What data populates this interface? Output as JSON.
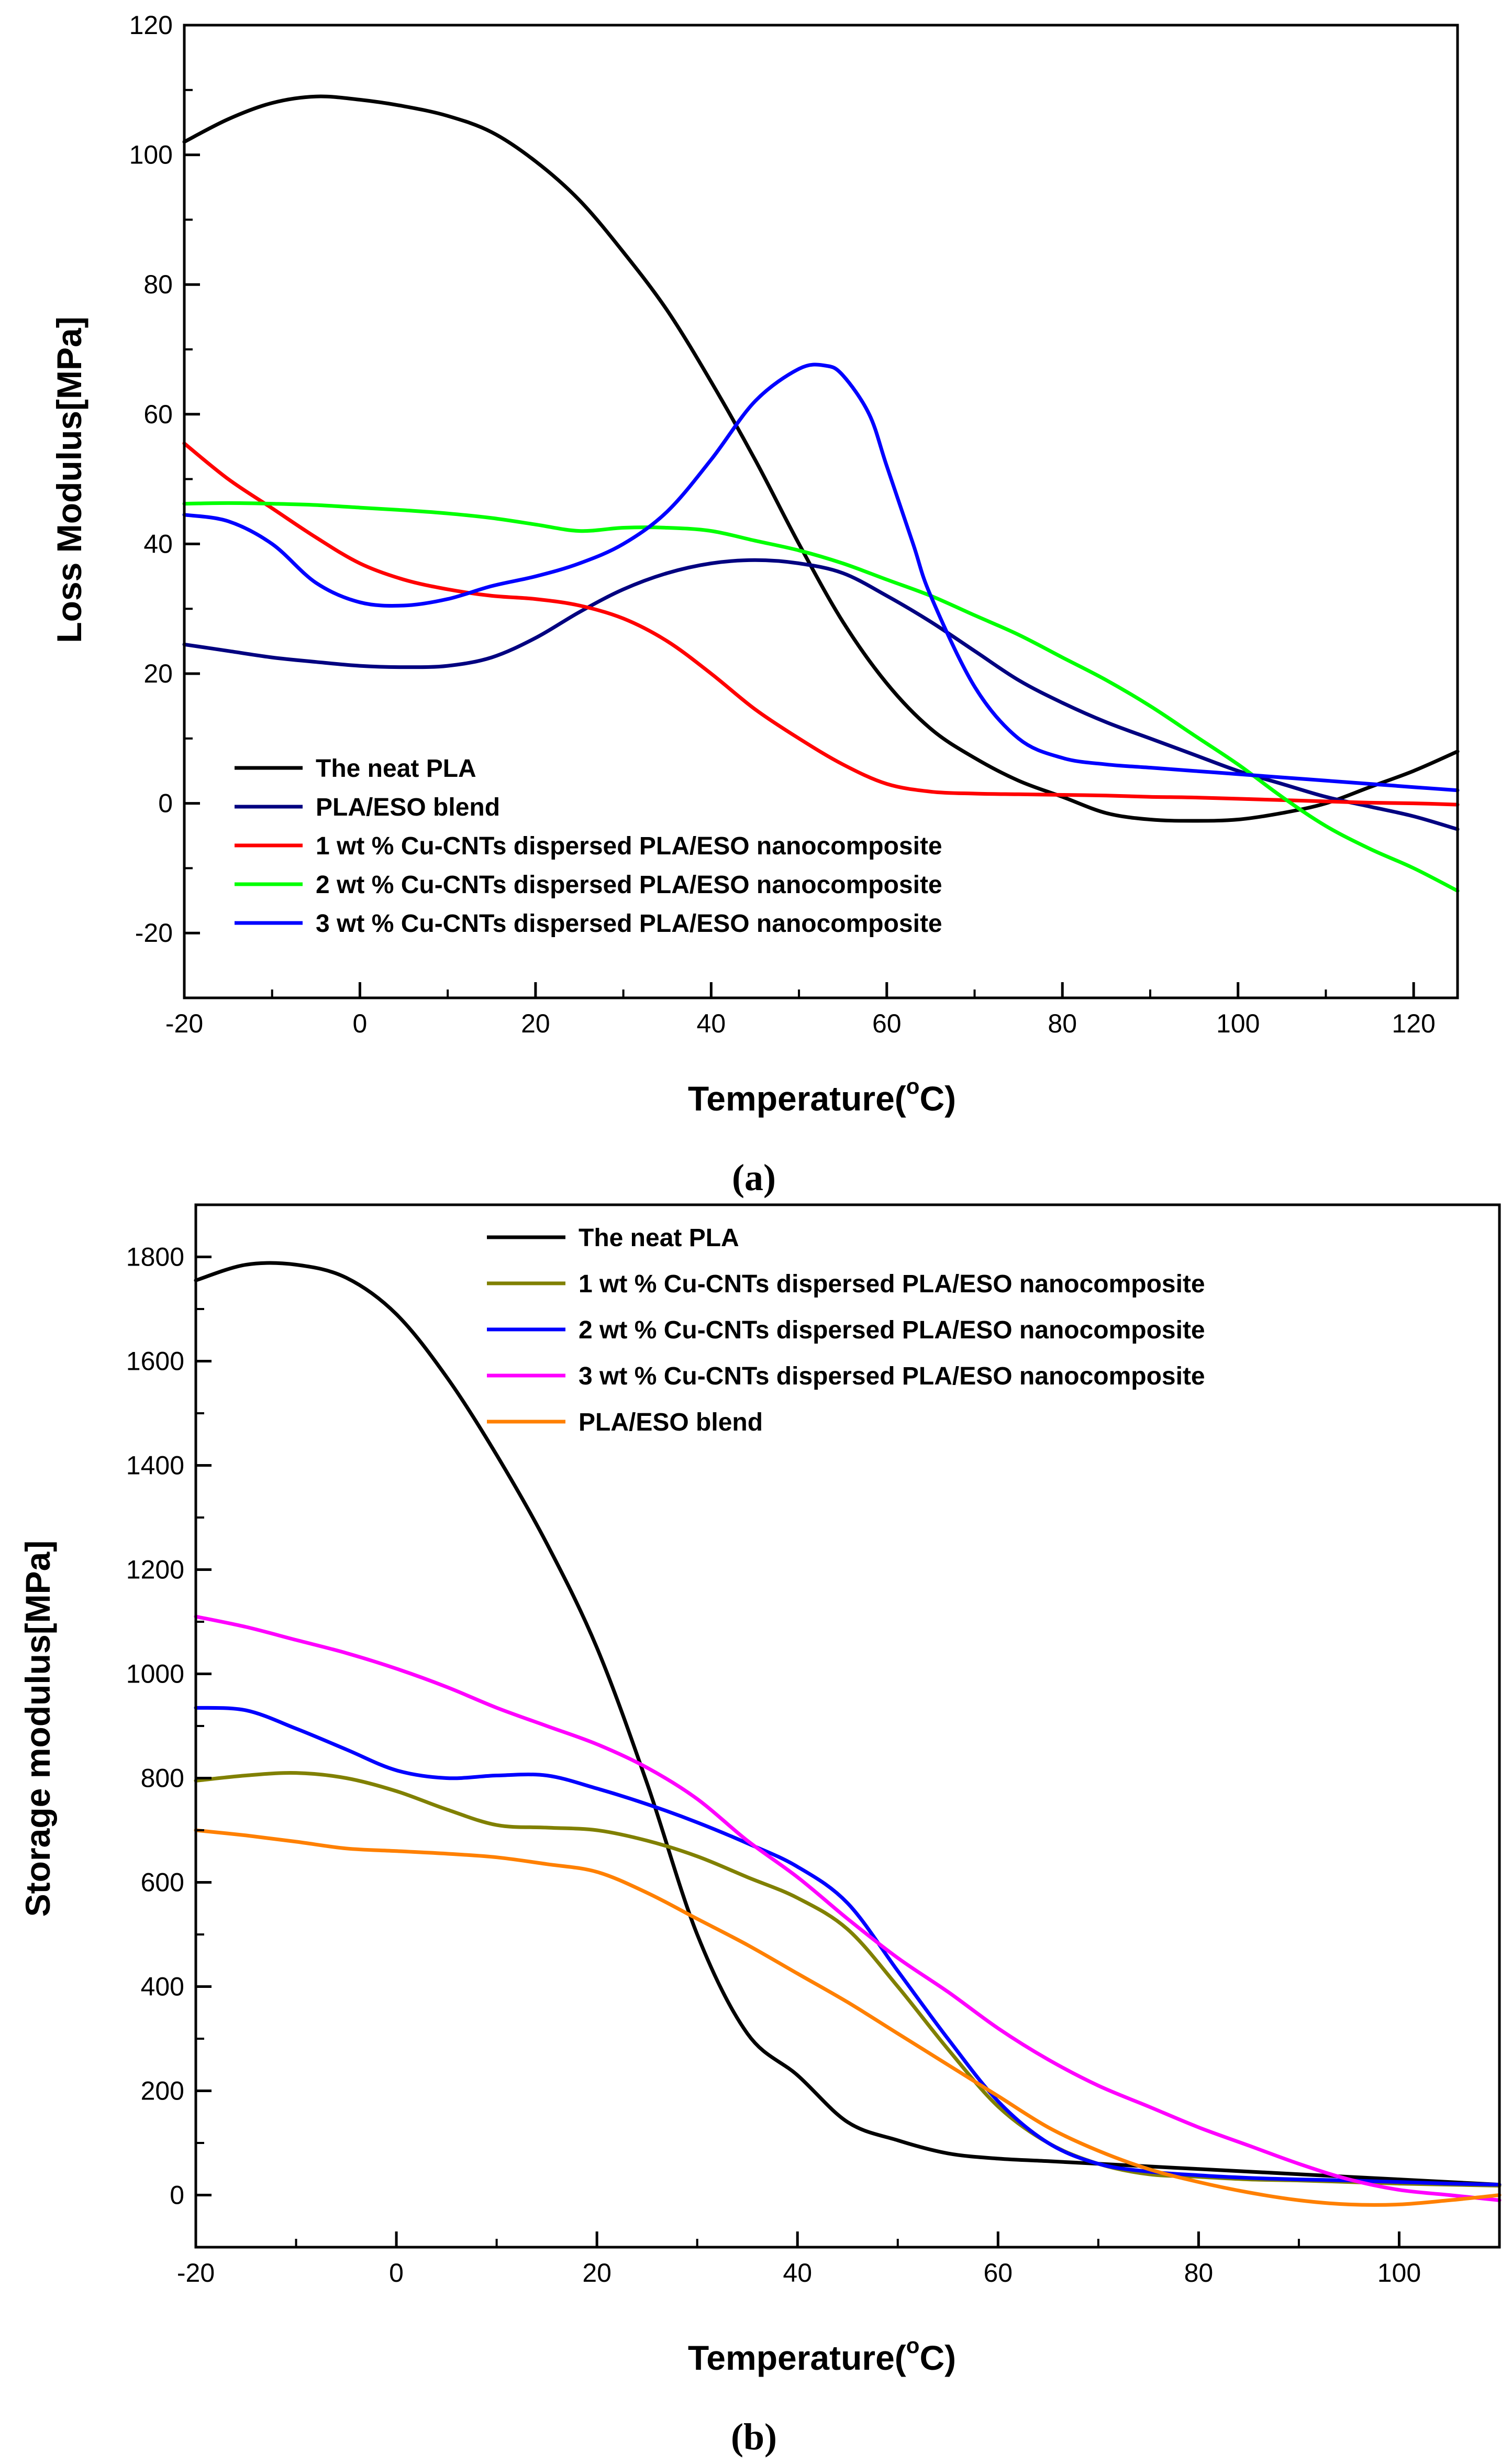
{
  "chart_data": [
    {
      "type": "line",
      "panel_label": "(a)",
      "xlabel": "Temperature(",
      "xlabel_sup": "o",
      "xlabel_suffix": "C)",
      "ylabel": "Loss Modulus[MPa]",
      "xlim": [
        -20,
        125
      ],
      "ylim": [
        -30,
        120
      ],
      "xticks": [
        -20,
        0,
        20,
        40,
        60,
        80,
        100,
        120
      ],
      "yticks": [
        -20,
        0,
        20,
        40,
        60,
        80,
        100,
        120
      ],
      "grid": false,
      "legend_position": "bottom-left",
      "series": [
        {
          "name": "The neat PLA",
          "color": "#000000",
          "x": [
            -20,
            -15,
            -10,
            -5,
            0,
            5,
            10,
            15,
            20,
            25,
            30,
            35,
            40,
            45,
            50,
            55,
            60,
            65,
            70,
            75,
            80,
            85,
            90,
            95,
            100,
            105,
            110,
            115,
            120,
            125
          ],
          "y": [
            102,
            105.5,
            108,
            109,
            108.5,
            107.5,
            106,
            103.5,
            99,
            93,
            85,
            76,
            65,
            53,
            40,
            28,
            18.5,
            11.5,
            7,
            3.5,
            1,
            -1.5,
            -2.5,
            -2.7,
            -2.5,
            -1.5,
            0,
            2.5,
            5,
            8
          ]
        },
        {
          "name": "PLA/ESO blend",
          "color": "#000080",
          "x": [
            -20,
            -15,
            -10,
            -5,
            0,
            5,
            10,
            15,
            20,
            25,
            30,
            35,
            40,
            45,
            50,
            55,
            60,
            65,
            70,
            75,
            80,
            85,
            90,
            95,
            100,
            105,
            110,
            115,
            120,
            125
          ],
          "y": [
            24.5,
            23.5,
            22.5,
            21.8,
            21.2,
            21,
            21.2,
            22.5,
            25.5,
            29.5,
            33,
            35.5,
            37,
            37.5,
            37,
            35.5,
            32,
            28,
            23.5,
            19,
            15.5,
            12.5,
            10,
            7.5,
            5,
            3,
            1,
            -0.5,
            -2,
            -4
          ]
        },
        {
          "name": "1 wt % Cu-CNTs dispersed PLA/ESO nanocomposite",
          "color": "#ff0000",
          "x": [
            -20,
            -15,
            -10,
            -5,
            0,
            5,
            10,
            15,
            20,
            25,
            30,
            35,
            40,
            45,
            50,
            55,
            60,
            65,
            70,
            75,
            80,
            85,
            90,
            95,
            100,
            105,
            110,
            115,
            120,
            125
          ],
          "y": [
            55.5,
            50,
            45.5,
            41,
            37,
            34.5,
            33,
            32,
            31.5,
            30.5,
            28.5,
            25,
            20,
            14.5,
            10,
            6,
            3,
            1.8,
            1.5,
            1.4,
            1.3,
            1.2,
            1,
            0.9,
            0.7,
            0.5,
            0.3,
            0.1,
            0,
            -0.2
          ]
        },
        {
          "name": "2 wt % Cu-CNTs dispersed PLA/ESO nanocomposite",
          "color": "#00ff00",
          "x": [
            -20,
            -15,
            -10,
            -5,
            0,
            5,
            10,
            15,
            20,
            25,
            30,
            35,
            40,
            45,
            50,
            55,
            60,
            65,
            70,
            75,
            80,
            85,
            90,
            95,
            100,
            105,
            110,
            115,
            120,
            125
          ],
          "y": [
            46.2,
            46.3,
            46.2,
            46,
            45.6,
            45.2,
            44.7,
            44,
            43,
            42,
            42.5,
            42.5,
            42,
            40.5,
            39,
            37,
            34.5,
            32,
            29,
            26,
            22.5,
            19,
            15,
            10.5,
            6,
            1,
            -3.5,
            -7,
            -10,
            -13.5
          ]
        },
        {
          "name": "3 wt % Cu-CNTs dispersed PLA/ESO nanocomposite",
          "color": "#0000ff",
          "x": [
            -20,
            -15,
            -10,
            -5,
            0,
            5,
            10,
            15,
            20,
            25,
            30,
            35,
            40,
            45,
            50,
            53,
            55,
            58,
            60,
            63,
            65,
            70,
            75,
            80,
            85,
            90,
            95,
            100,
            105,
            110,
            115,
            120,
            125
          ],
          "y": [
            44.5,
            43.5,
            40,
            34,
            31,
            30.5,
            31.5,
            33.5,
            35,
            37,
            40,
            45,
            53,
            62,
            67,
            67.5,
            66,
            60,
            52,
            40,
            32,
            18,
            10,
            7,
            6,
            5.5,
            5,
            4.5,
            4,
            3.5,
            3,
            2.5,
            2
          ]
        }
      ]
    },
    {
      "type": "line",
      "panel_label": "(b)",
      "xlabel": "Temperature(",
      "xlabel_sup": "o",
      "xlabel_suffix": "C)",
      "ylabel": "Storage modulus[MPa]",
      "xlim": [
        -20,
        110
      ],
      "ylim": [
        -100,
        1900
      ],
      "xticks": [
        -20,
        0,
        20,
        40,
        60,
        80,
        100
      ],
      "yticks": [
        0,
        200,
        400,
        600,
        800,
        1000,
        1200,
        1400,
        1600,
        1800
      ],
      "grid": false,
      "legend_position": "top-right",
      "series": [
        {
          "name": "The neat PLA",
          "color": "#000000",
          "x": [
            -20,
            -15,
            -10,
            -5,
            0,
            5,
            10,
            15,
            20,
            25,
            30,
            35,
            40,
            45,
            50,
            55,
            60,
            65,
            70,
            75,
            80,
            85,
            90,
            95,
            100,
            105,
            110
          ],
          "y": [
            1755,
            1785,
            1785,
            1760,
            1690,
            1570,
            1420,
            1250,
            1050,
            790,
            500,
            310,
            230,
            140,
            105,
            80,
            70,
            65,
            60,
            55,
            50,
            45,
            40,
            35,
            30,
            25,
            20
          ]
        },
        {
          "name": "1 wt % Cu-CNTs dispersed PLA/ESO nanocomposite",
          "color": "#808000",
          "x": [
            -20,
            -15,
            -10,
            -5,
            0,
            5,
            10,
            15,
            20,
            25,
            30,
            35,
            40,
            45,
            50,
            55,
            60,
            65,
            70,
            75,
            80,
            85,
            90,
            95,
            100,
            105,
            110
          ],
          "y": [
            795,
            805,
            810,
            800,
            775,
            740,
            710,
            705,
            700,
            680,
            650,
            610,
            570,
            510,
            400,
            280,
            170,
            100,
            60,
            40,
            35,
            30,
            28,
            25,
            22,
            20,
            18
          ]
        },
        {
          "name": "2 wt % Cu-CNTs dispersed PLA/ESO nanocomposite",
          "color": "#0000ff",
          "x": [
            -20,
            -15,
            -10,
            -5,
            0,
            5,
            10,
            15,
            20,
            25,
            30,
            35,
            40,
            45,
            50,
            55,
            60,
            65,
            70,
            75,
            80,
            85,
            90,
            95,
            100,
            105,
            110
          ],
          "y": [
            935,
            930,
            895,
            855,
            815,
            800,
            805,
            805,
            780,
            750,
            715,
            675,
            630,
            560,
            430,
            300,
            180,
            100,
            60,
            45,
            38,
            33,
            30,
            28,
            25,
            22,
            20
          ]
        },
        {
          "name": "3 wt % Cu-CNTs dispersed PLA/ESO nanocomposite",
          "color": "#ff00ff",
          "x": [
            -20,
            -15,
            -10,
            -5,
            0,
            5,
            10,
            15,
            20,
            25,
            30,
            35,
            40,
            45,
            50,
            55,
            60,
            65,
            70,
            75,
            80,
            85,
            90,
            95,
            100,
            105,
            110
          ],
          "y": [
            1110,
            1090,
            1065,
            1040,
            1010,
            975,
            935,
            900,
            865,
            820,
            760,
            680,
            610,
            530,
            455,
            390,
            320,
            260,
            210,
            170,
            130,
            95,
            60,
            30,
            10,
            0,
            -10
          ]
        },
        {
          "name": "PLA/ESO blend",
          "color": "#ff8000",
          "x": [
            -20,
            -15,
            -10,
            -5,
            0,
            5,
            10,
            15,
            20,
            25,
            30,
            35,
            40,
            45,
            50,
            55,
            60,
            65,
            70,
            75,
            80,
            85,
            90,
            95,
            100,
            105,
            110
          ],
          "y": [
            700,
            690,
            678,
            665,
            660,
            655,
            648,
            635,
            620,
            580,
            530,
            480,
            425,
            370,
            310,
            250,
            190,
            130,
            85,
            50,
            25,
            5,
            -10,
            -18,
            -18,
            -10,
            0
          ]
        }
      ]
    }
  ]
}
